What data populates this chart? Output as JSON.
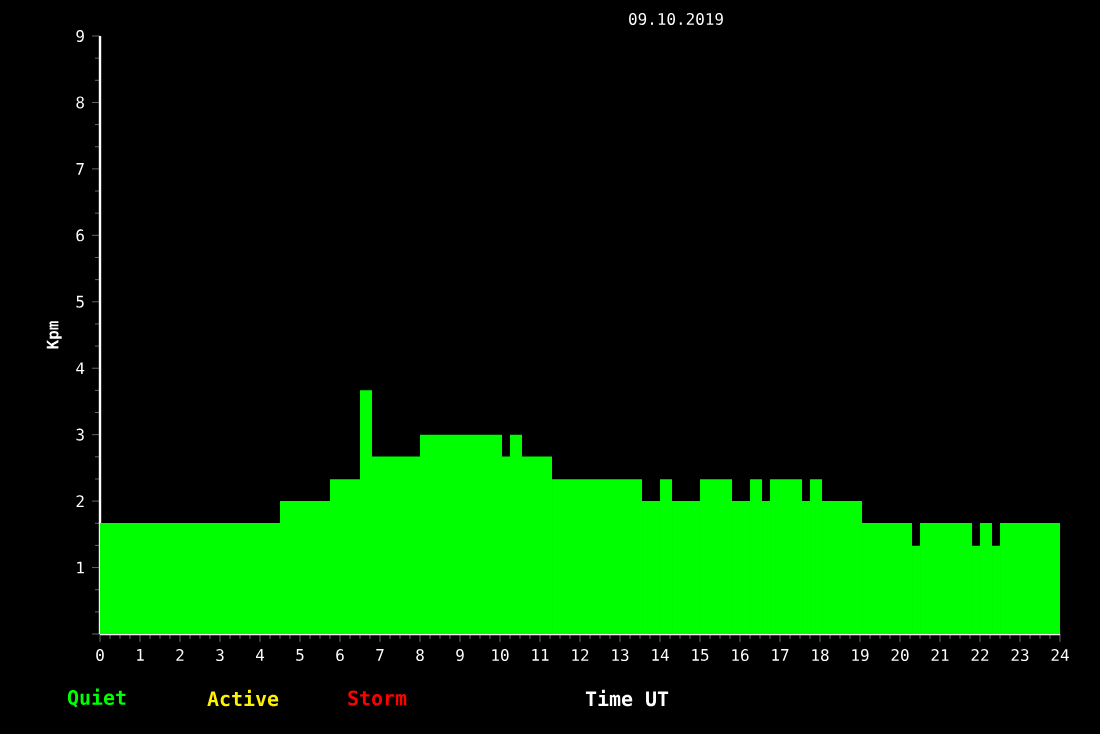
{
  "chart_data": {
    "type": "histogram",
    "title": "09.10.2019",
    "xlabel": "Time UT",
    "ylabel": "Kpm",
    "bins": [
      0,
      4.5,
      5.75,
      6.5,
      6.8,
      8,
      10.05,
      10.25,
      10.55,
      11.3,
      13.55,
      14,
      14.3,
      15,
      15.8,
      16.25,
      16.55,
      16.75,
      17.55,
      17.75,
      18.05,
      19.05,
      20.3,
      20.5,
      21.8,
      22,
      22.3,
      22.5,
      24
    ],
    "series": [
      {
        "name": "Quiet",
        "color": "#00ff00",
        "values": [
          1.67,
          2,
          2.33,
          3.67,
          2.67,
          3,
          2.67,
          3,
          2.67,
          2.33,
          2,
          2.33,
          2,
          2.33,
          2,
          2.33,
          2,
          2.33,
          2,
          2.33,
          2,
          1.67,
          1.33,
          1.67,
          1.33,
          1.67,
          1.33,
          1.67
        ]
      }
    ],
    "annotations": [
      "Active",
      "Storm"
    ],
    "xlim": [
      0,
      24
    ],
    "xticks": [
      0,
      1,
      2,
      3,
      4,
      5,
      6,
      7,
      8,
      9,
      10,
      11,
      12,
      13,
      14,
      15,
      16,
      17,
      18,
      19,
      20,
      21,
      22,
      23,
      24
    ],
    "ylim": [
      0,
      9
    ],
    "yticks": [
      {
        "value": 0,
        "label": null
      },
      1,
      2,
      3,
      4,
      5,
      6,
      7,
      8,
      9
    ],
    "legend": "bottom left",
    "grid": false
  }
}
